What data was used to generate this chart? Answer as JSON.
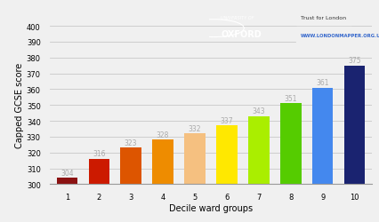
{
  "categories": [
    1,
    2,
    3,
    4,
    5,
    6,
    7,
    8,
    9,
    10
  ],
  "values": [
    304,
    316,
    323,
    328,
    332,
    337,
    343,
    351,
    361,
    375
  ],
  "bar_colors": [
    "#8B1212",
    "#CC1A00",
    "#DD5500",
    "#EE8C00",
    "#F5C080",
    "#FFE800",
    "#AAEE00",
    "#55CC00",
    "#4488EE",
    "#1A2370"
  ],
  "xlabel": "Decile ward groups",
  "ylabel": "Capped GCSE score",
  "ylim": [
    300,
    400
  ],
  "yticks": [
    300,
    310,
    320,
    330,
    340,
    350,
    360,
    370,
    380,
    390,
    400
  ],
  "bg_color": "#F0F0F0",
  "grid_color": "#C8C8C8",
  "label_color": "#AAAAAA",
  "label_fontsize": 5.5,
  "tick_fontsize": 6,
  "axis_label_fontsize": 7
}
